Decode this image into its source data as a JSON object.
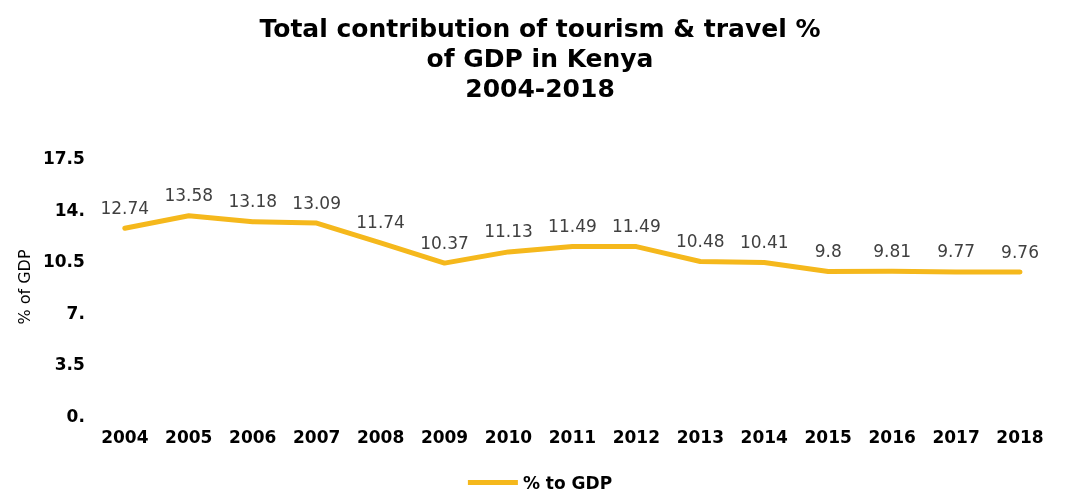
{
  "chart_data": {
    "type": "line",
    "title": "Total contribution of tourism & travel %\nof GDP in Kenya\n2004-2018",
    "ylabel": "% of GDP",
    "categories": [
      "2004",
      "2005",
      "2006",
      "2007",
      "2008",
      "2009",
      "2010",
      "2011",
      "2012",
      "2013",
      "2014",
      "2015",
      "2016",
      "2017",
      "2018"
    ],
    "series": [
      {
        "name": "% to GDP",
        "color": "#f5b81c",
        "values": [
          12.74,
          13.58,
          13.18,
          13.09,
          11.74,
          10.37,
          11.13,
          11.49,
          11.49,
          10.48,
          10.41,
          9.8,
          9.81,
          9.77,
          9.76
        ]
      }
    ],
    "ylim": [
      0,
      17.5
    ],
    "yticks": [
      {
        "value": 0,
        "label": "0."
      },
      {
        "value": 3.5,
        "label": "3.5"
      },
      {
        "value": 7,
        "label": "7."
      },
      {
        "value": 10.5,
        "label": "10.5"
      },
      {
        "value": 14,
        "label": "14."
      },
      {
        "value": 17.5,
        "label": "17.5"
      }
    ],
    "grid": false,
    "legend": "bottom",
    "data_labels": true,
    "marker": "none",
    "line_style": "solid"
  }
}
